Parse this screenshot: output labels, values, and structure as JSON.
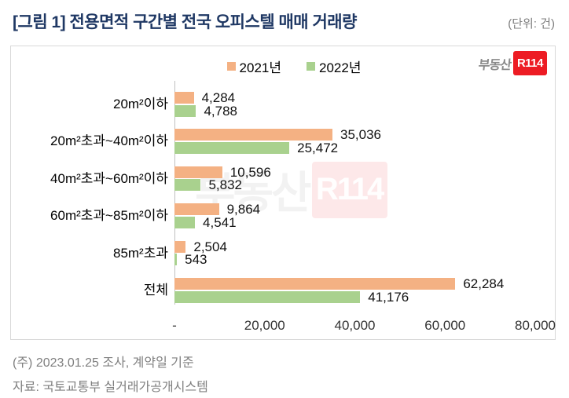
{
  "page": {
    "title": "[그림 1] 전용면적 구간별 전국 오피스텔 매매 거래량",
    "unit_note": "(단위: 건)",
    "footnote_line1": "(주) 2023.01.25 조사, 계약일 기준",
    "footnote_line2": "자료: 국토교통부 실거래가공개시스템"
  },
  "logo": {
    "prefix": "부동산",
    "badge": "R114"
  },
  "watermark": {
    "prefix": "부동산",
    "badge": "R114"
  },
  "colors": {
    "series_2021": "#F4B183",
    "series_2022": "#A9D18E",
    "title_navy": "#1F3864",
    "logo_red": "#ED1C24",
    "axis_line": "#BFBFBF",
    "muted_text": "#7F7F7F",
    "box_border": "#D9D9D9"
  },
  "chart_data": {
    "type": "bar",
    "orientation": "horizontal",
    "title": "전용면적 구간별 전국 오피스텔 매매 거래량",
    "categories": [
      "20m²이하",
      "20m²초과~40m²이하",
      "40m²초과~60m²이하",
      "60m²초과~85m²이하",
      "85m²초과",
      "전체"
    ],
    "series": [
      {
        "name": "2021년",
        "color": "#F4B183",
        "values": [
          4284,
          35036,
          10596,
          9864,
          2504,
          62284
        ]
      },
      {
        "name": "2022년",
        "color": "#A9D18E",
        "values": [
          4788,
          25472,
          5832,
          4541,
          543,
          41176
        ]
      }
    ],
    "xlim": [
      0,
      80000
    ],
    "x_ticks": [
      "-",
      "20,000",
      "40,000",
      "60,000",
      "80,000"
    ],
    "x_tick_values": [
      0,
      20000,
      40000,
      60000,
      80000
    ],
    "value_labels": true,
    "legend_position": "top",
    "grid": false
  }
}
